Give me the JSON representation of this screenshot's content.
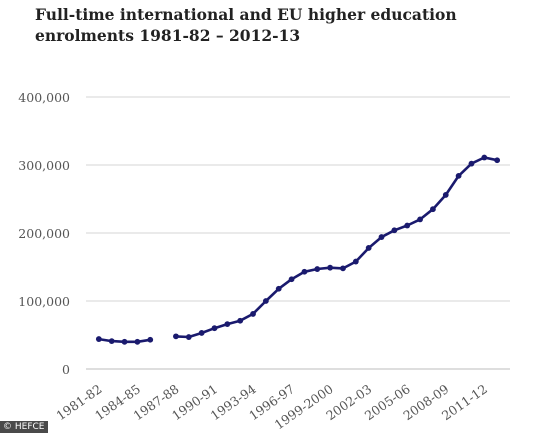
{
  "chart_data": {
    "type": "line",
    "title_lines": [
      "Full-time international and EU higher education",
      "enrolments 1981-82 – 2012-13"
    ],
    "xlabel": "",
    "ylabel": "",
    "ylim": [
      0,
      400000
    ],
    "yticks": [
      0,
      100000,
      200000,
      300000,
      400000
    ],
    "ytick_labels": [
      "0",
      "100,000",
      "200,000",
      "300,000",
      "400,000"
    ],
    "x_tick_labels": [
      "1981-82",
      "1984-85",
      "1987-88",
      "1990-91",
      "1993-94",
      "1996-97",
      "1999-2000",
      "2002-03",
      "2005-06",
      "2008-09",
      "2011-12"
    ],
    "x_tick_positions": [
      1981,
      1984,
      1987,
      1990,
      1993,
      1996,
      1999,
      2002,
      2005,
      2008,
      2011
    ],
    "xlim": [
      1980,
      2013
    ],
    "grid": true,
    "line_color": "#1a1a6e",
    "series": [
      {
        "segments": [
          [
            {
              "x": 1981,
              "y": 44000
            },
            {
              "x": 1982,
              "y": 41000
            },
            {
              "x": 1983,
              "y": 40000
            },
            {
              "x": 1984,
              "y": 40000
            },
            {
              "x": 1985,
              "y": 43000
            }
          ],
          [
            {
              "x": 1987,
              "y": 48000
            },
            {
              "x": 1988,
              "y": 47000
            },
            {
              "x": 1989,
              "y": 53000
            },
            {
              "x": 1990,
              "y": 60000
            },
            {
              "x": 1991,
              "y": 66000
            },
            {
              "x": 1992,
              "y": 71000
            },
            {
              "x": 1993,
              "y": 81000
            },
            {
              "x": 1994,
              "y": 100000
            },
            {
              "x": 1995,
              "y": 118000
            },
            {
              "x": 1996,
              "y": 132000
            },
            {
              "x": 1997,
              "y": 143000
            },
            {
              "x": 1998,
              "y": 147000
            },
            {
              "x": 1999,
              "y": 149000
            },
            {
              "x": 2000,
              "y": 148000
            },
            {
              "x": 2001,
              "y": 158000
            },
            {
              "x": 2002,
              "y": 178000
            },
            {
              "x": 2003,
              "y": 194000
            },
            {
              "x": 2004,
              "y": 204000
            },
            {
              "x": 2005,
              "y": 211000
            },
            {
              "x": 2006,
              "y": 220000
            },
            {
              "x": 2007,
              "y": 235000
            },
            {
              "x": 2008,
              "y": 256000
            },
            {
              "x": 2009,
              "y": 284000
            },
            {
              "x": 2010,
              "y": 302000
            },
            {
              "x": 2011,
              "y": 311000
            },
            {
              "x": 2012,
              "y": 307000
            }
          ]
        ]
      }
    ]
  },
  "credit": "© HEFCE"
}
